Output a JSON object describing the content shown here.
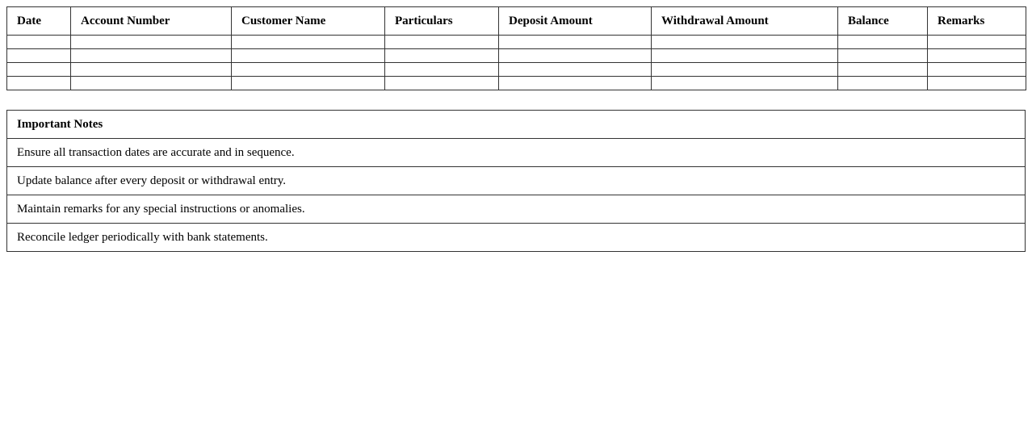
{
  "ledger": {
    "columns": [
      "Date",
      "Account Number",
      "Customer Name",
      "Particulars",
      "Deposit Amount",
      "Withdrawal Amount",
      "Balance",
      "Remarks"
    ],
    "rows": [
      [
        "",
        "",
        "",
        "",
        "",
        "",
        "",
        ""
      ],
      [
        "",
        "",
        "",
        "",
        "",
        "",
        "",
        ""
      ],
      [
        "",
        "",
        "",
        "",
        "",
        "",
        "",
        ""
      ],
      [
        "",
        "",
        "",
        "",
        "",
        "",
        "",
        ""
      ]
    ]
  },
  "notes": {
    "title": "Important Notes",
    "items": [
      "Ensure all transaction dates are accurate and in sequence.",
      "Update balance after every deposit or withdrawal entry.",
      "Maintain remarks for any special instructions or anomalies.",
      "Reconcile ledger periodically with bank statements."
    ]
  }
}
